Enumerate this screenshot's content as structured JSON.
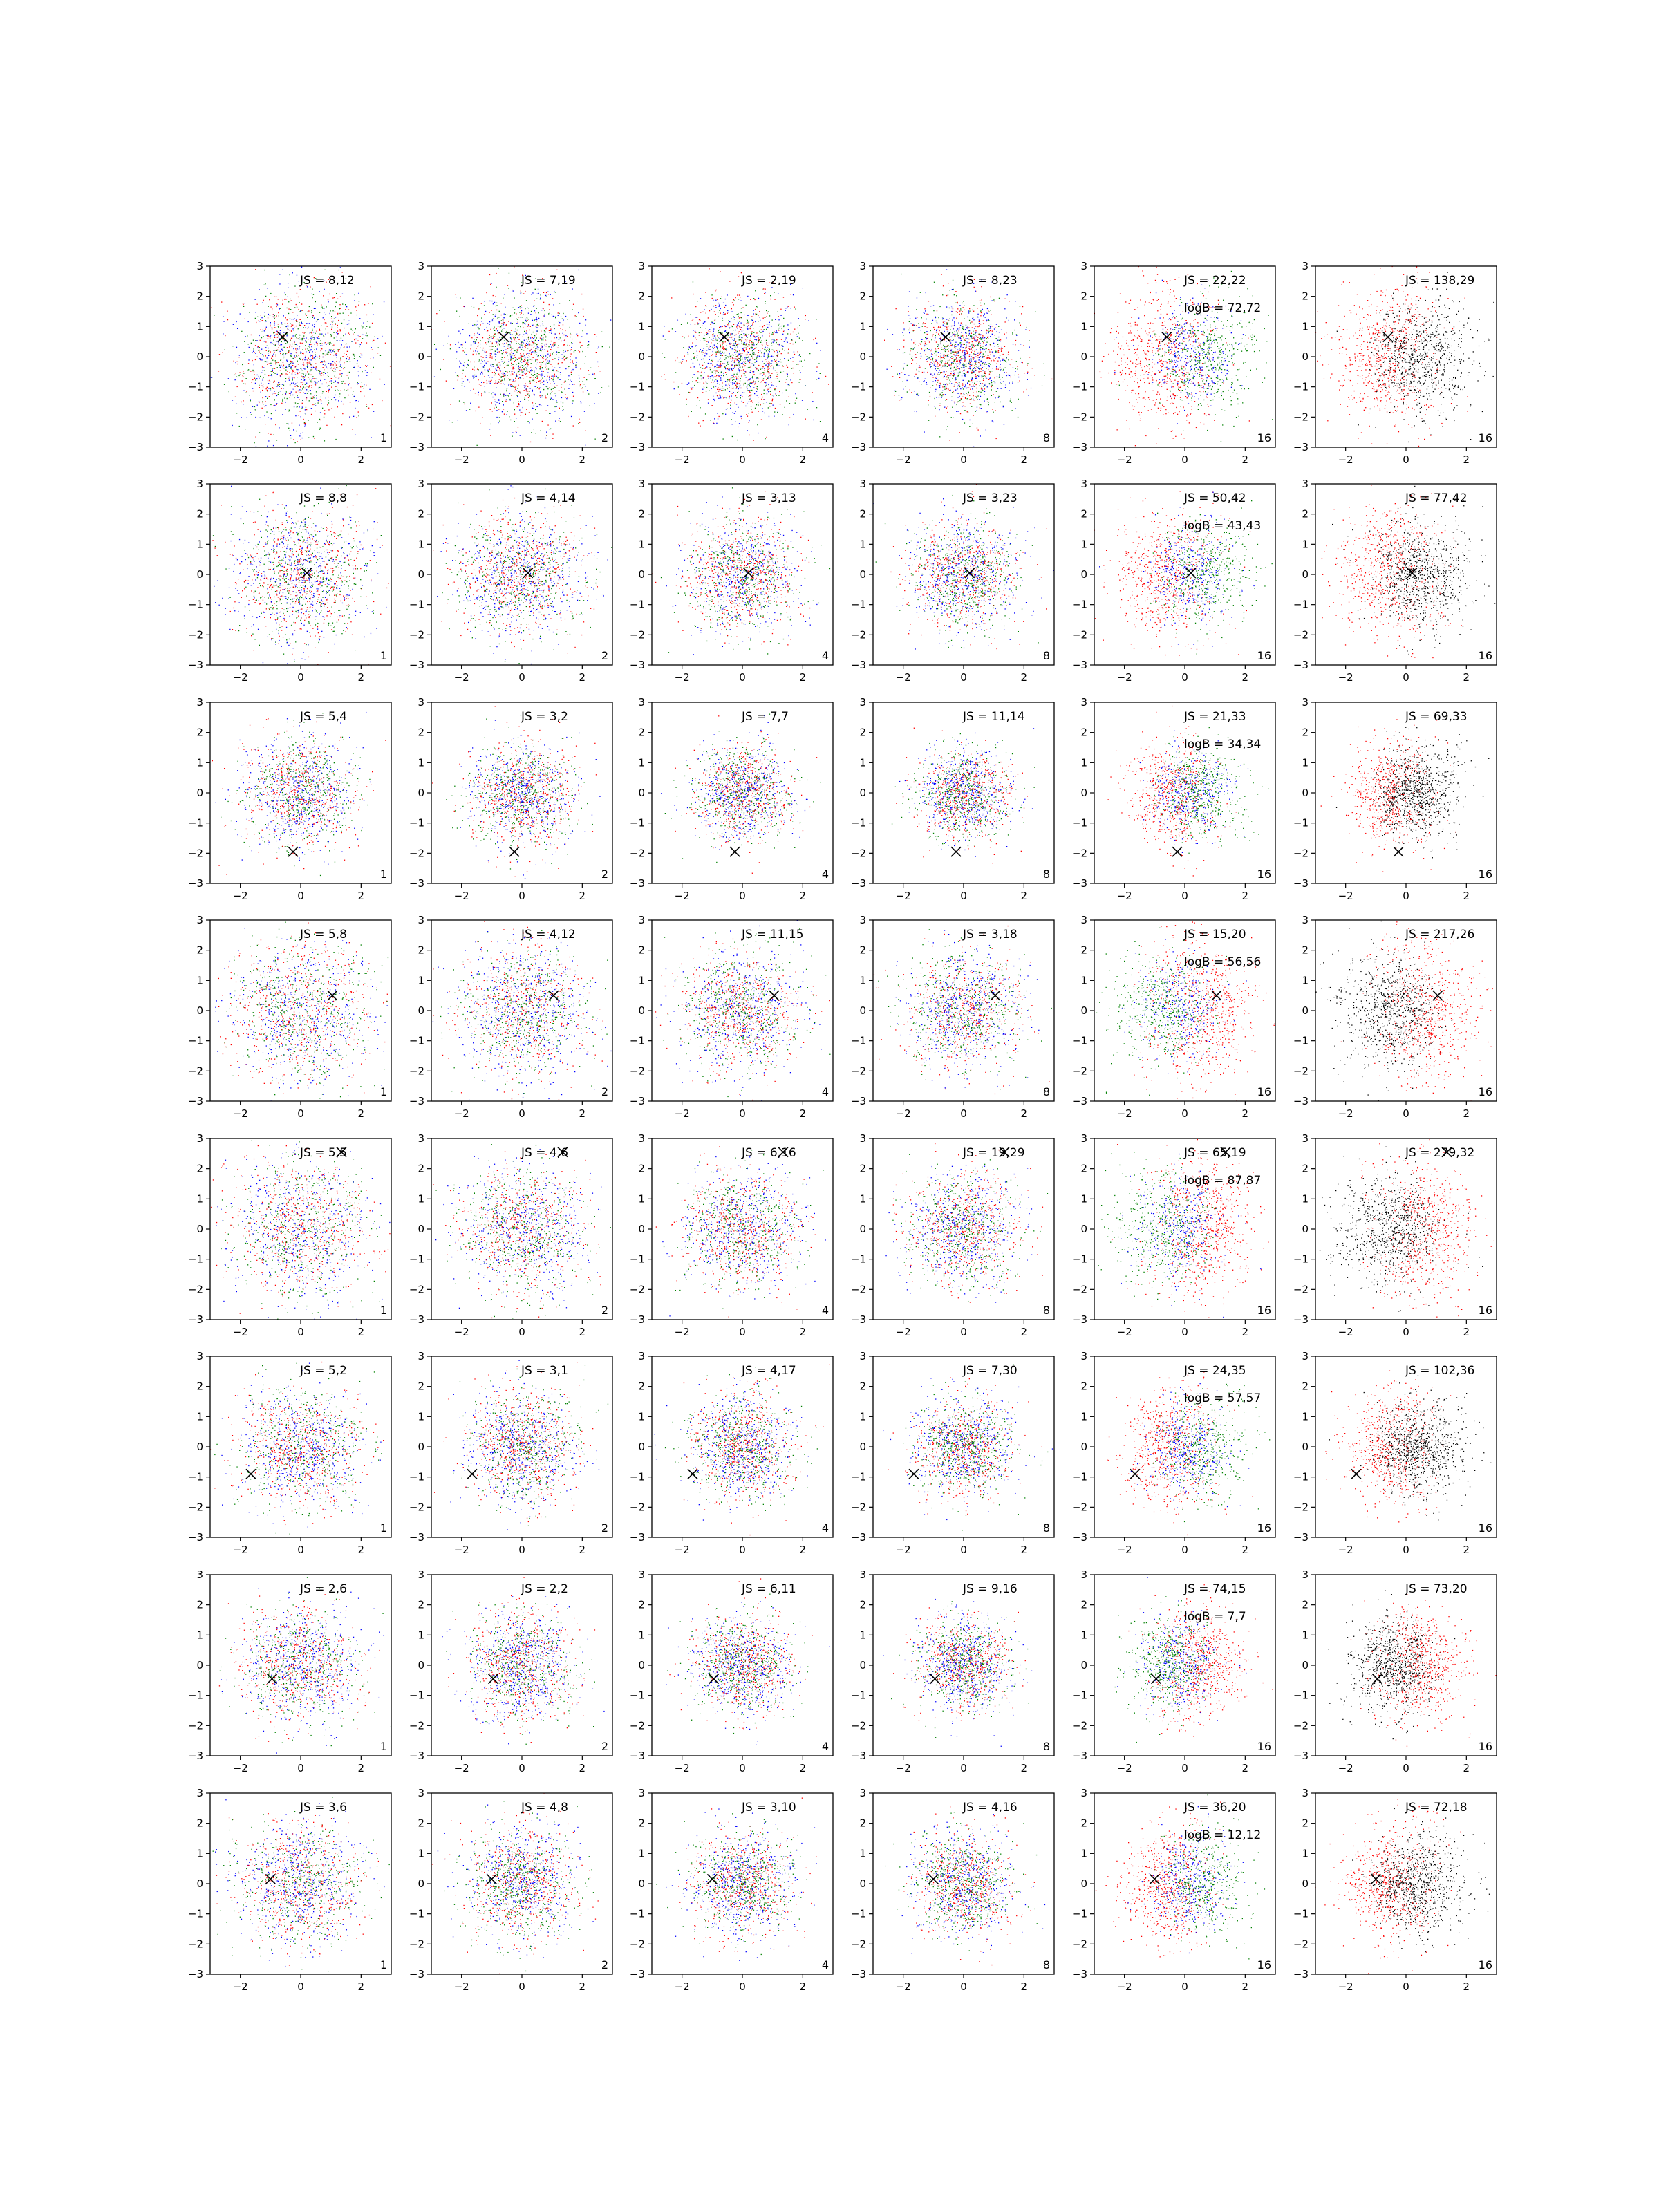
{
  "chart_data": {
    "type": "scatter",
    "layout": {
      "rows": 8,
      "cols": 6
    },
    "xlim": [
      -3,
      3
    ],
    "ylim": [
      -3,
      3
    ],
    "xticks": [
      -2,
      0,
      2
    ],
    "yticks": [
      -3,
      -2,
      -1,
      0,
      1,
      2,
      3
    ],
    "grid": false,
    "point_colors": {
      "red": "#ff0000",
      "green": "#008000",
      "blue": "#0000ff",
      "black": "#000000",
      "marker": "#000000"
    },
    "column_corner_labels": [
      "1",
      "2",
      "4",
      "8",
      "16",
      "16"
    ],
    "rows": [
      {
        "marker": [
          -0.6,
          0.65
        ],
        "js": [
          "JS = 8,12",
          "JS = 7,19",
          "JS = 2,19",
          "JS = 8,23",
          "JS = 22,22",
          "JS = 138,29"
        ],
        "logB": "logB = 72,72"
      },
      {
        "marker": [
          0.2,
          0.05
        ],
        "js": [
          "JS = 8,8",
          "JS = 4,14",
          "JS = 3,13",
          "JS = 3,23",
          "JS = 50,42",
          "JS = 77,42"
        ],
        "logB": "logB = 43,43"
      },
      {
        "marker": [
          -0.25,
          -1.95
        ],
        "js": [
          "JS = 5,4",
          "JS = 3,2",
          "JS = 7,7",
          "JS = 11,14",
          "JS = 21,33",
          "JS = 69,33"
        ],
        "logB": "logB = 34,34"
      },
      {
        "marker": [
          1.05,
          0.5
        ],
        "js": [
          "JS = 5,8",
          "JS = 4,12",
          "JS = 11,15",
          "JS = 3,18",
          "JS = 15,20",
          "JS = 217,26"
        ],
        "logB": "logB = 56,56"
      },
      {
        "marker": [
          1.35,
          2.55
        ],
        "js": [
          "JS = 5,5",
          "JS = 4,6",
          "JS = 6,16",
          "JS = 19,29",
          "JS = 65,19",
          "JS = 279,32"
        ],
        "logB": "logB = 87,87"
      },
      {
        "marker": [
          -1.65,
          -0.9
        ],
        "js": [
          "JS = 5,2",
          "JS = 3,1",
          "JS = 4,17",
          "JS = 7,30",
          "JS = 24,35",
          "JS = 102,36"
        ],
        "logB": "logB = 57,57"
      },
      {
        "marker": [
          -0.95,
          -0.45
        ],
        "js": [
          "JS = 2,6",
          "JS = 2,2",
          "JS = 6,11",
          "JS = 9,16",
          "JS = 74,15",
          "JS = 73,20"
        ],
        "logB": "logB = 7,7"
      },
      {
        "marker": [
          -1.0,
          0.15
        ],
        "js": [
          "JS = 3,6",
          "JS = 4,8",
          "JS = 3,10",
          "JS = 4,16",
          "JS = 36,20",
          "JS = 72,18"
        ],
        "logB": "logB = 12,12"
      }
    ]
  }
}
